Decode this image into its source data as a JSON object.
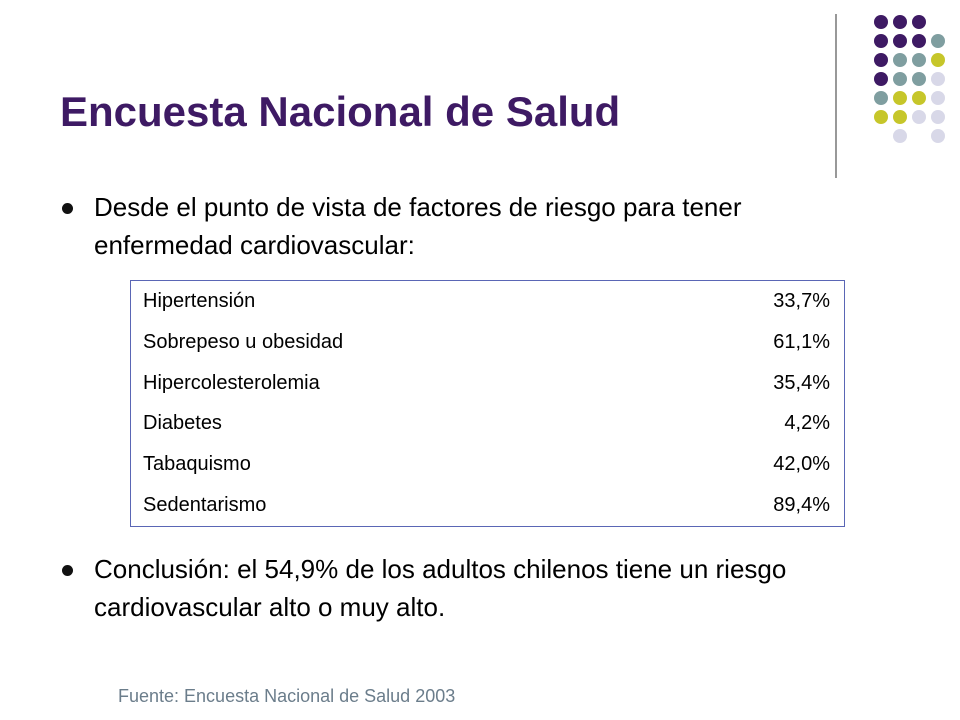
{
  "title": "Encuesta Nacional de Salud",
  "bullets": {
    "intro": "Desde el punto de vista de factores de riesgo para tener enfermedad cardiovascular:",
    "conclusion": "Conclusión: el 54,9% de los adultos chilenos tiene un riesgo cardiovascular alto o muy alto."
  },
  "risk_table": {
    "rows": [
      {
        "factor": "Hipertensión",
        "value": "33,7%"
      },
      {
        "factor": "Sobrepeso u obesidad",
        "value": "61,1%"
      },
      {
        "factor": "Hipercolesterolemia",
        "value": "35,4%"
      },
      {
        "factor": "Diabetes",
        "value": "4,2%"
      },
      {
        "factor": "Tabaquismo",
        "value": "42,0%"
      },
      {
        "factor": "Sedentarismo",
        "value": "89,4%"
      }
    ]
  },
  "source": "Fuente: Encuesta Nacional de Salud 2003",
  "colors": {
    "title": "#3e1a64",
    "purple": "#3e1a64",
    "teal": "#7f9ea0",
    "olive": "#c6c62a",
    "lavender": "#d8d8e8",
    "table_border": "#5a66b5",
    "source_text": "#6b7d8b"
  }
}
